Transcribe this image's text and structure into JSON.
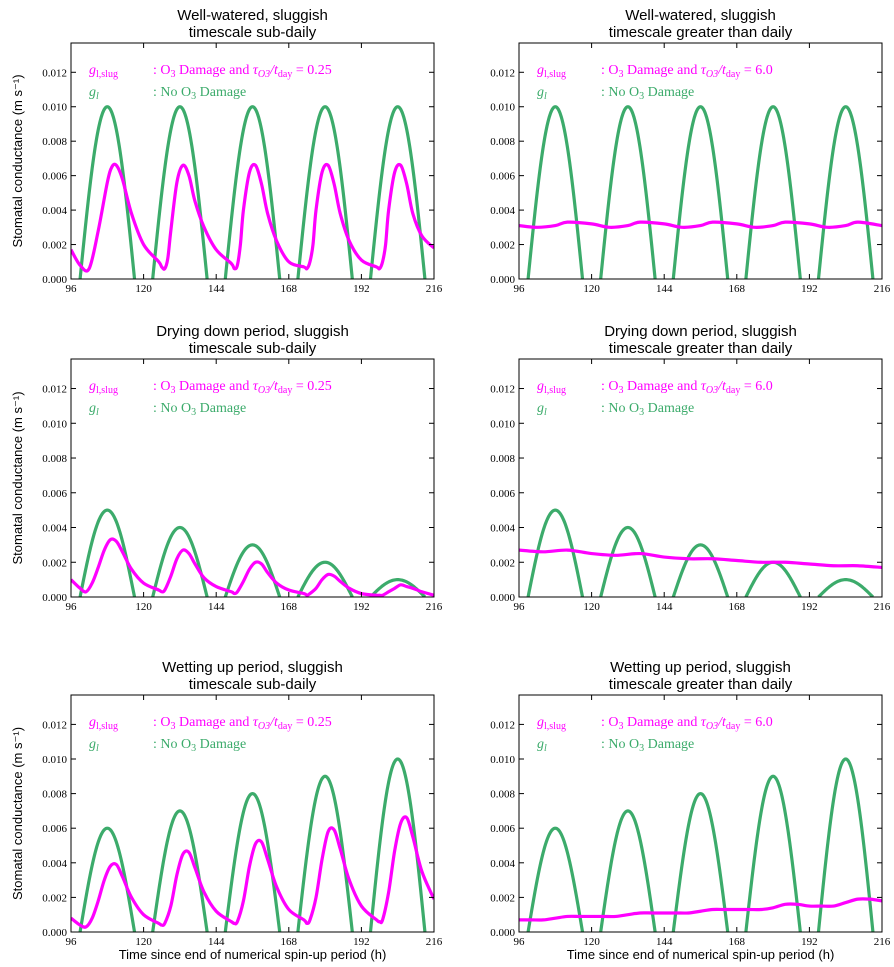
{
  "colors": {
    "slug": "#ff00ff",
    "gl": "#3cab6b"
  },
  "legend": {
    "slug_symbol": "g",
    "slug_subscript": "l,slug",
    "gl_symbol": "g",
    "gl_subscript": "l",
    "slug_text_left": ": O",
    "slug_text_mid": "Damage and ",
    "tau_symbol": "τ",
    "tau_subscript": "O3",
    "tday_symbol": "/t",
    "tday_subscript": "day",
    "gl_text": ": No O",
    "gl_text_end": "Damage"
  },
  "ylabel": "Stomatal conductance (m s⁻¹)",
  "xlabel": "Time since end of numerical spin-up period (h)",
  "chart_data": [
    {
      "type": "line",
      "title_line1": "Well-watered, sluggish",
      "title_line2": "timescale sub-daily",
      "ratio": "0.25",
      "xlim": [
        96,
        216
      ],
      "ylim": [
        0,
        0.0137
      ],
      "xticks": [
        96,
        120,
        144,
        168,
        192,
        216
      ],
      "xtick_labels": [
        "96",
        "120",
        "144",
        "168",
        "192",
        "216"
      ],
      "yticks": [
        "0.000",
        "0.002",
        "0.004",
        "0.006",
        "0.008",
        "0.010",
        "0.012"
      ],
      "series": [
        {
          "name": "g_l,slug: O3 Damage and tau_O3/t_day = 0.25",
          "x": [
            96,
            99,
            102,
            105,
            108,
            109.5,
            111,
            113,
            116,
            120,
            125,
            126,
            127,
            128,
            129,
            131,
            133,
            135,
            137,
            140,
            144,
            149,
            150,
            151,
            152,
            153,
            155,
            157,
            159,
            161,
            164,
            168,
            173,
            174,
            175,
            176,
            177,
            179,
            181,
            183,
            185,
            188,
            192,
            197,
            198,
            199,
            200,
            201,
            203,
            205,
            207,
            209,
            212,
            216
          ],
          "y": [
            0.0017,
            0.0008,
            0.0006,
            0.0028,
            0.0056,
            0.0065,
            0.0066,
            0.0058,
            0.0038,
            0.002,
            0.001,
            0.0007,
            0.0006,
            0.0012,
            0.0028,
            0.0056,
            0.0066,
            0.006,
            0.0045,
            0.003,
            0.0017,
            0.0009,
            0.0006,
            0.0008,
            0.002,
            0.004,
            0.0062,
            0.0066,
            0.0055,
            0.0038,
            0.0022,
            0.001,
            0.0007,
            0.0006,
            0.001,
            0.002,
            0.004,
            0.0062,
            0.0066,
            0.0055,
            0.0038,
            0.0022,
            0.0011,
            0.0007,
            0.0006,
            0.001,
            0.002,
            0.004,
            0.0062,
            0.0066,
            0.0055,
            0.0038,
            0.0025,
            0.0018
          ]
        },
        {
          "name": "g_l: No O3 Damage",
          "peaks": [
            0.01,
            0.01,
            0.01,
            0.01,
            0.01
          ]
        }
      ]
    },
    {
      "type": "line",
      "title_line1": "Well-watered, sluggish",
      "title_line2": "timescale greater than daily",
      "ratio": "6.0",
      "xlim": [
        96,
        216
      ],
      "ylim": [
        0,
        0.0137
      ],
      "xticks": [
        96,
        120,
        144,
        168,
        192,
        216
      ],
      "xtick_labels": [
        "96",
        "120",
        "144",
        "168",
        "192",
        "216"
      ],
      "yticks": [
        "0.000",
        "0.002",
        "0.004",
        "0.006",
        "0.008",
        "0.010",
        "0.012"
      ],
      "series": [
        {
          "name": "g_l,slug: O3 Damage and tau_O3/t_day = 6.0",
          "x": [
            96,
            102,
            108,
            112,
            120,
            126,
            132,
            136,
            144,
            150,
            156,
            160,
            168,
            174,
            180,
            184,
            192,
            198,
            204,
            208,
            216
          ],
          "y": [
            0.0031,
            0.003,
            0.0031,
            0.0033,
            0.0032,
            0.003,
            0.0031,
            0.0033,
            0.0032,
            0.003,
            0.0031,
            0.0033,
            0.0032,
            0.003,
            0.0031,
            0.0033,
            0.0032,
            0.003,
            0.0031,
            0.0033,
            0.0031
          ]
        },
        {
          "name": "g_l: No O3 Damage",
          "peaks": [
            0.01,
            0.01,
            0.01,
            0.01,
            0.01
          ]
        }
      ]
    },
    {
      "type": "line",
      "title_line1": "Drying down period, sluggish",
      "title_line2": "timescale sub-daily",
      "ratio": "0.25",
      "xlim": [
        96,
        216
      ],
      "ylim": [
        0,
        0.0137
      ],
      "xticks": [
        96,
        120,
        144,
        168,
        192,
        216
      ],
      "xtick_labels": [
        "96",
        "120",
        "144",
        "168",
        "192",
        "216"
      ],
      "yticks": [
        "0.000",
        "0.002",
        "0.004",
        "0.006",
        "0.008",
        "0.010",
        "0.012"
      ],
      "series": [
        {
          "name": "g_l,slug: O3 Damage and tau_O3/t_day = 0.25",
          "x": [
            96,
            99,
            101,
            103,
            105,
            107,
            109,
            111,
            113,
            116,
            120,
            125,
            126,
            127,
            129,
            131,
            133,
            135,
            137,
            140,
            144,
            149,
            150,
            151,
            153,
            155,
            157,
            159,
            161,
            164,
            168,
            173,
            174,
            175,
            177,
            179,
            181,
            183,
            185,
            188,
            192,
            197,
            198,
            199,
            201,
            203,
            205,
            207,
            209,
            212,
            216
          ],
          "y": [
            0.001,
            0.0005,
            0.0003,
            0.0008,
            0.0017,
            0.0027,
            0.0033,
            0.0032,
            0.0026,
            0.0016,
            0.0008,
            0.0004,
            0.0003,
            0.0004,
            0.0012,
            0.0022,
            0.0027,
            0.0025,
            0.0019,
            0.0011,
            0.0006,
            0.0003,
            0.0002,
            0.0003,
            0.0009,
            0.0016,
            0.002,
            0.0019,
            0.0014,
            0.0008,
            0.0004,
            0.0002,
            0.0001,
            0.0002,
            0.0005,
            0.001,
            0.0013,
            0.0012,
            0.0009,
            0.0005,
            0.0002,
            0.0001,
            0.0001,
            0.0001,
            0.0003,
            0.0005,
            0.0007,
            0.0006,
            0.0005,
            0.0003,
            0.0001
          ]
        },
        {
          "name": "g_l: No O3 Damage",
          "peaks": [
            0.005,
            0.004,
            0.003,
            0.002,
            0.001
          ]
        }
      ]
    },
    {
      "type": "line",
      "title_line1": "Drying down period, sluggish",
      "title_line2": "timescale greater than daily",
      "ratio": "6.0",
      "xlim": [
        96,
        216
      ],
      "ylim": [
        0,
        0.0137
      ],
      "xticks": [
        96,
        120,
        144,
        168,
        192,
        216
      ],
      "xtick_labels": [
        "96",
        "120",
        "144",
        "168",
        "192",
        "216"
      ],
      "yticks": [
        "0.000",
        "0.002",
        "0.004",
        "0.006",
        "0.008",
        "0.010",
        "0.012"
      ],
      "series": [
        {
          "name": "g_l,slug: O3 Damage and tau_O3/t_day = 6.0",
          "x": [
            96,
            104,
            112,
            120,
            128,
            136,
            144,
            152,
            160,
            168,
            176,
            184,
            192,
            200,
            208,
            216
          ],
          "y": [
            0.0027,
            0.0026,
            0.0027,
            0.0025,
            0.0024,
            0.0025,
            0.0023,
            0.0022,
            0.0022,
            0.0021,
            0.002,
            0.002,
            0.0019,
            0.0018,
            0.0018,
            0.0017
          ]
        },
        {
          "name": "g_l: No O3 Damage",
          "peaks": [
            0.005,
            0.004,
            0.003,
            0.002,
            0.001
          ]
        }
      ]
    },
    {
      "type": "line",
      "title_line1": "Wetting up period, sluggish",
      "title_line2": "timescale sub-daily",
      "ratio": "0.25",
      "xlim": [
        96,
        216
      ],
      "ylim": [
        0,
        0.0137
      ],
      "xticks": [
        96,
        120,
        144,
        168,
        192,
        216
      ],
      "xtick_labels": [
        "96",
        "120",
        "144",
        "168",
        "192",
        "216"
      ],
      "yticks": [
        "0.000",
        "0.002",
        "0.004",
        "0.006",
        "0.008",
        "0.010",
        "0.012"
      ],
      "series": [
        {
          "name": "g_l,slug: O3 Damage and tau_O3/t_day = 0.25",
          "x": [
            96,
            99,
            101,
            103,
            105,
            107,
            109,
            111,
            113,
            116,
            120,
            125,
            126,
            127,
            129,
            131,
            133,
            135,
            137,
            140,
            144,
            149,
            150,
            151,
            153,
            155,
            157,
            159,
            161,
            164,
            168,
            173,
            174,
            175,
            177,
            179,
            181,
            183,
            185,
            188,
            192,
            197,
            198,
            199,
            201,
            203,
            205,
            207,
            209,
            212,
            216
          ],
          "y": [
            0.0008,
            0.0004,
            0.0003,
            0.0008,
            0.0018,
            0.003,
            0.0038,
            0.0039,
            0.0032,
            0.002,
            0.001,
            0.0005,
            0.0004,
            0.0005,
            0.0015,
            0.0033,
            0.0045,
            0.0046,
            0.0037,
            0.0023,
            0.0012,
            0.0006,
            0.0005,
            0.0006,
            0.0018,
            0.0038,
            0.0051,
            0.0052,
            0.0042,
            0.0026,
            0.0013,
            0.0007,
            0.0005,
            0.0007,
            0.002,
            0.0042,
            0.0058,
            0.0059,
            0.0048,
            0.003,
            0.0015,
            0.0007,
            0.0006,
            0.0007,
            0.0023,
            0.0047,
            0.0063,
            0.0066,
            0.0055,
            0.0035,
            0.0019
          ]
        },
        {
          "name": "g_l: No O3 Damage",
          "peaks": [
            0.006,
            0.007,
            0.008,
            0.009,
            0.01
          ]
        }
      ]
    },
    {
      "type": "line",
      "title_line1": "Wetting up period, sluggish",
      "title_line2": "timescale greater than daily",
      "ratio": "6.0",
      "xlim": [
        96,
        216
      ],
      "ylim": [
        0,
        0.0137
      ],
      "xticks": [
        96,
        120,
        144,
        168,
        192,
        216
      ],
      "xtick_labels": [
        "96",
        "120",
        "144",
        "168",
        "192",
        "216"
      ],
      "yticks": [
        "0.000",
        "0.002",
        "0.004",
        "0.006",
        "0.008",
        "0.010",
        "0.012"
      ],
      "series": [
        {
          "name": "g_l,slug: O3 Damage and tau_O3/t_day = 6.0",
          "x": [
            96,
            100,
            104,
            108,
            112,
            116,
            120,
            124,
            128,
            132,
            136,
            140,
            144,
            148,
            152,
            156,
            160,
            164,
            168,
            172,
            176,
            180,
            184,
            188,
            192,
            196,
            200,
            204,
            208,
            212,
            216
          ],
          "y": [
            0.0007,
            0.0007,
            0.0007,
            0.0008,
            0.0009,
            0.0009,
            0.0009,
            0.0009,
            0.0009,
            0.001,
            0.0011,
            0.0011,
            0.0011,
            0.0011,
            0.0011,
            0.0012,
            0.0013,
            0.0013,
            0.0013,
            0.0013,
            0.0013,
            0.0014,
            0.0016,
            0.0016,
            0.0015,
            0.0015,
            0.0015,
            0.0017,
            0.0019,
            0.0019,
            0.0018
          ]
        },
        {
          "name": "g_l: No O3 Damage",
          "peaks": [
            0.006,
            0.007,
            0.008,
            0.009,
            0.01
          ]
        }
      ]
    }
  ]
}
